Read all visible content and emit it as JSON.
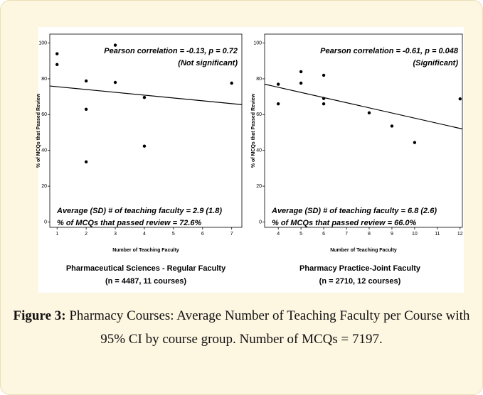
{
  "chart_data": [
    {
      "type": "scatter",
      "xlabel": "Number of Teaching Faculty",
      "ylabel": "% of MCQs that Passed Review",
      "annotations": [
        "Pearson correlation = -0.13, p = 0.72",
        "(Not significant)",
        "Average (SD) # of teaching faculty = 2.9 (1.8)",
        "% of MCQs that passed review = 72.6%"
      ],
      "subtitle": [
        "Pharmaceutical Sciences - Regular Faculty",
        "(n = 4487, 11 courses)"
      ],
      "x": [
        1,
        1,
        2,
        2,
        2,
        3,
        3,
        4,
        4,
        7
      ],
      "values": [
        94,
        88,
        78.8,
        63,
        33.6,
        98.8,
        78,
        69.6,
        42.4,
        77.6
      ],
      "fit": {
        "x": [
          0.75,
          7.35
        ],
        "y": [
          76,
          65.6
        ]
      },
      "color": "#000000",
      "xlim": [
        0.75,
        7.35
      ],
      "xticks": [
        1,
        2,
        3,
        4,
        5,
        6,
        7
      ],
      "ylim": [
        -3,
        105
      ],
      "yticks": [
        0,
        20,
        40,
        60,
        80,
        100
      ]
    },
    {
      "type": "scatter",
      "xlabel": "Number of Teaching Faculty",
      "ylabel": "% of MCQs that Passed Review",
      "annotations": [
        "Pearson correlation = -0.61, p = 0.048",
        "(Significant)",
        "Average (SD) # of teaching faculty = 6.8 (2.6)",
        "% of MCQs that passed review = 66.0%"
      ],
      "subtitle": [
        "Pharmacy Practice-Joint Faculty",
        "(n = 2710, 12 courses)"
      ],
      "x": [
        4,
        4,
        5,
        5,
        6,
        6,
        6,
        8,
        9,
        10,
        12
      ],
      "values": [
        77,
        66,
        84,
        77.6,
        82,
        69,
        66,
        61,
        53.6,
        44.4,
        68.8
      ],
      "fit": {
        "x": [
          3.4,
          12.1
        ],
        "y": [
          77,
          52
        ]
      },
      "color": "#000000",
      "xlim": [
        3.4,
        12.1
      ],
      "xticks": [
        4,
        5,
        6,
        7,
        8,
        9,
        10,
        11,
        12
      ],
      "ylim": [
        -3,
        105
      ],
      "yticks": [
        0,
        20,
        40,
        60,
        80,
        100
      ]
    }
  ],
  "caption": {
    "label": "Figure 3:",
    "text": "Pharmacy Courses: Average Number of Teaching Faculty per Course with 95% CI by course group. Number of MCQs = 7197."
  }
}
